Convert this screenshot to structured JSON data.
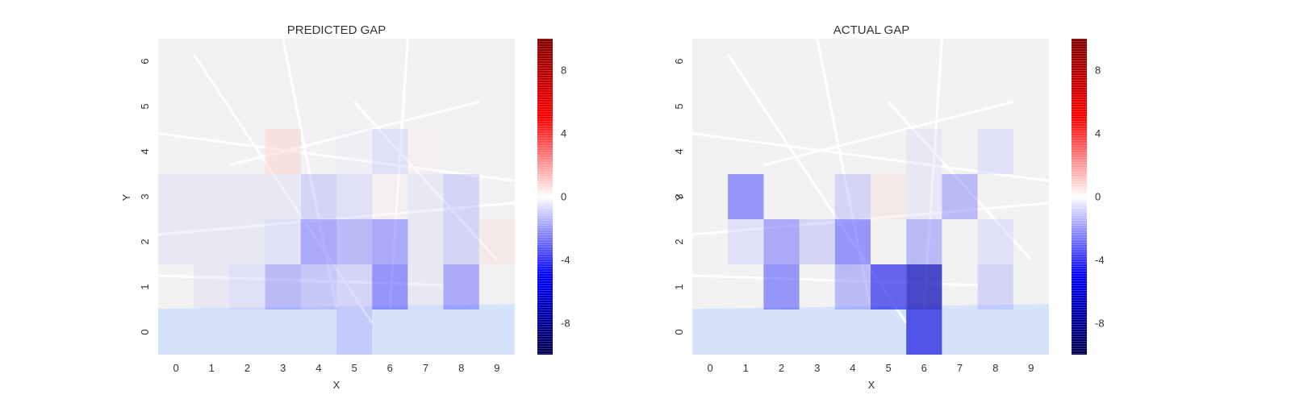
{
  "chart_data": [
    {
      "type": "heatmap",
      "title": "PREDICTED GAP",
      "xlabel": "X",
      "ylabel": "Y",
      "x_ticks": [
        "0",
        "1",
        "2",
        "3",
        "4",
        "5",
        "6",
        "7",
        "8",
        "9"
      ],
      "y_ticks": [
        "0",
        "1",
        "2",
        "3",
        "4",
        "5",
        "6"
      ],
      "colorbar": {
        "ticks": [
          "-8",
          "-4",
          "0",
          "4",
          "8"
        ],
        "range": [
          -10,
          10
        ],
        "colormap": "seismic"
      },
      "background": "street map",
      "grid": [
        [
          null,
          null,
          null,
          null,
          null,
          -2,
          null,
          null,
          null,
          null
        ],
        [
          null,
          -1,
          -1.5,
          -3,
          -2.5,
          -2,
          -4,
          -1,
          -3.5,
          null
        ],
        [
          -1,
          -1,
          -1,
          -1.5,
          -3.5,
          -3,
          -3.5,
          -1,
          -2,
          1
        ],
        [
          -1,
          -1,
          -1,
          -1,
          -2,
          -1.5,
          0.5,
          -1,
          -2,
          null
        ],
        [
          null,
          null,
          null,
          1.5,
          null,
          -0.5,
          -1.5,
          0.5,
          null,
          null
        ],
        [
          null,
          null,
          null,
          null,
          null,
          null,
          null,
          null,
          null,
          null
        ],
        [
          null,
          null,
          null,
          null,
          null,
          null,
          null,
          null,
          null,
          null
        ]
      ]
    },
    {
      "type": "heatmap",
      "title": "ACTUAL GAP",
      "xlabel": "X",
      "ylabel": "Y",
      "x_ticks": [
        "0",
        "1",
        "2",
        "3",
        "4",
        "5",
        "6",
        "7",
        "8",
        "9"
      ],
      "y_ticks": [
        "0",
        "1",
        "2",
        "3",
        "4",
        "5",
        "6"
      ],
      "colorbar": {
        "ticks": [
          "-8",
          "-4",
          "0",
          "4",
          "8"
        ],
        "range": [
          -10,
          10
        ],
        "colormap": "seismic"
      },
      "background": "street map",
      "grid": [
        [
          null,
          null,
          null,
          null,
          null,
          null,
          -6,
          null,
          null,
          null
        ],
        [
          null,
          null,
          -4,
          null,
          -3,
          -5.5,
          -7,
          null,
          -2,
          null
        ],
        [
          null,
          -1.5,
          -3.5,
          -2,
          -4,
          null,
          -3,
          null,
          -1.5,
          null
        ],
        [
          null,
          -4,
          null,
          null,
          -2,
          1,
          -1,
          -3,
          null,
          null
        ],
        [
          null,
          null,
          null,
          null,
          null,
          null,
          -1,
          null,
          -1.5,
          null
        ],
        [
          null,
          null,
          null,
          null,
          null,
          null,
          null,
          null,
          null,
          null
        ],
        [
          null,
          null,
          null,
          null,
          null,
          null,
          null,
          null,
          null,
          null
        ]
      ]
    }
  ],
  "colors": {
    "water": "#d6e4fb",
    "map_land": "#f2f2f2",
    "map_road": "#ffffff",
    "cmap_negative": "#0000ff",
    "cmap_positive": "#ff0000",
    "cmap_dark_negative": "#00004c",
    "cmap_dark_positive": "#800000"
  }
}
